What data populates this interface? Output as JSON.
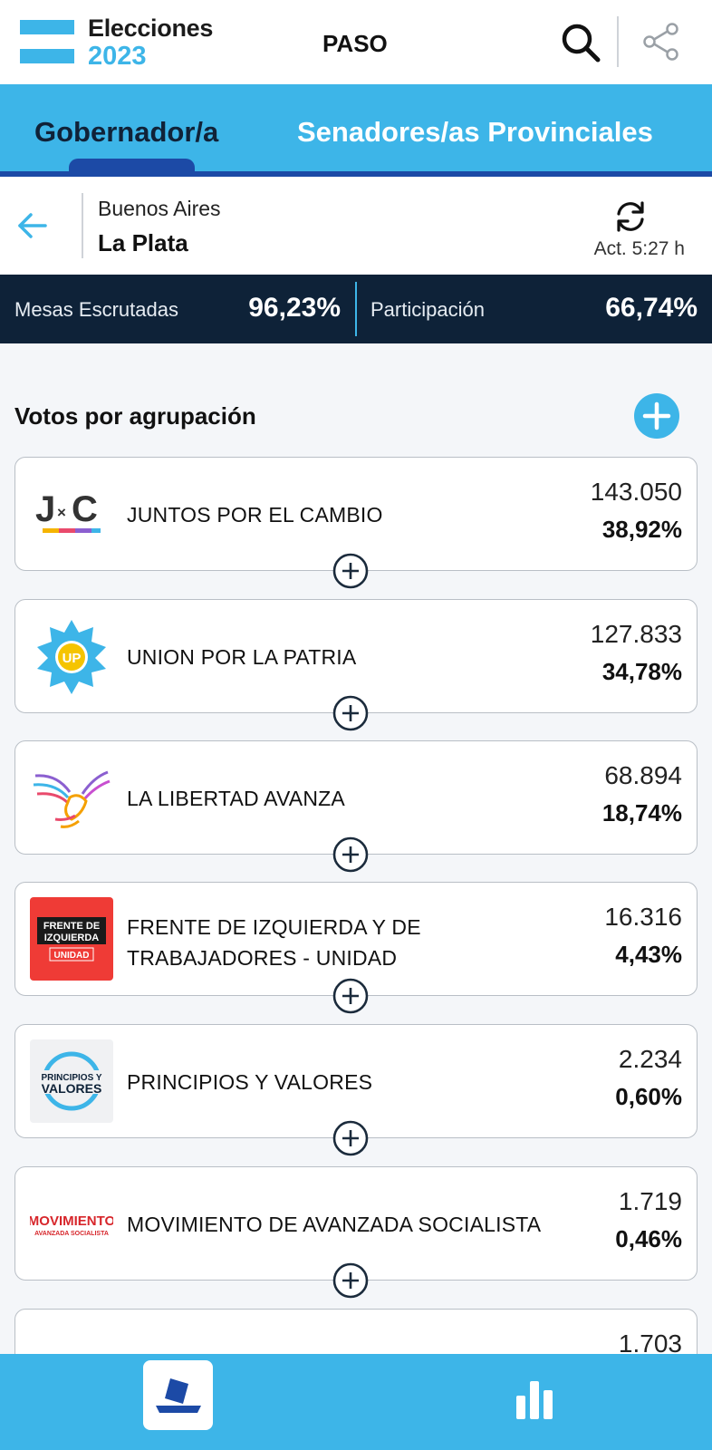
{
  "header": {
    "brand_line1": "Elecciones",
    "brand_line2": "2023",
    "election_type": "PASO",
    "search_icon": "search-icon",
    "share_icon": "share-icon"
  },
  "tabs": [
    {
      "label": "Gobernador/a",
      "active": true
    },
    {
      "label": "Senadores/as Provinciales",
      "active": false
    }
  ],
  "location": {
    "province": "Buenos Aires",
    "city": "La Plata",
    "updated": "Act. 5:27 h"
  },
  "stats": {
    "mesas_label": "Mesas Escrutadas",
    "mesas_value": "96,23%",
    "participacion_label": "Participación",
    "participacion_value": "66,74%"
  },
  "section": {
    "title": "Votos por agrupación"
  },
  "parties": [
    {
      "name_line1": "JUNTOS POR EL CAMBIO",
      "name_line2": "",
      "votes": "143.050",
      "pct": "38,92%",
      "logo_text": "J×C"
    },
    {
      "name_line1": "UNION POR LA PATRIA",
      "name_line2": "",
      "votes": "127.833",
      "pct": "34,78%",
      "logo_text": "UP"
    },
    {
      "name_line1": "LA LIBERTAD AVANZA",
      "name_line2": "",
      "votes": "68.894",
      "pct": "18,74%",
      "logo_text": ""
    },
    {
      "name_line1": "FRENTE DE IZQUIERDA Y DE",
      "name_line2": "TRABAJADORES - UNIDAD",
      "votes": "16.316",
      "pct": "4,43%",
      "logo_text": "FRENTE DE IZQUIERDA UNIDAD"
    },
    {
      "name_line1": "PRINCIPIOS Y VALORES",
      "name_line2": "",
      "votes": "2.234",
      "pct": "0,60%",
      "logo_text": "PRINCIPIOS Y VALORES"
    },
    {
      "name_line1": "MOVIMIENTO DE AVANZADA SOCIALISTA",
      "name_line2": "",
      "votes": "1.719",
      "pct": "0,46%",
      "logo_text": "MOVIMIENTO AVANZADA SOCIALISTA"
    },
    {
      "name_line1": "",
      "name_line2": "",
      "votes": "1.703",
      "pct": "",
      "logo_text": ""
    }
  ],
  "colors": {
    "accent": "#3db5e8",
    "navy": "#0e2238",
    "indicator": "#1c4aa6"
  }
}
